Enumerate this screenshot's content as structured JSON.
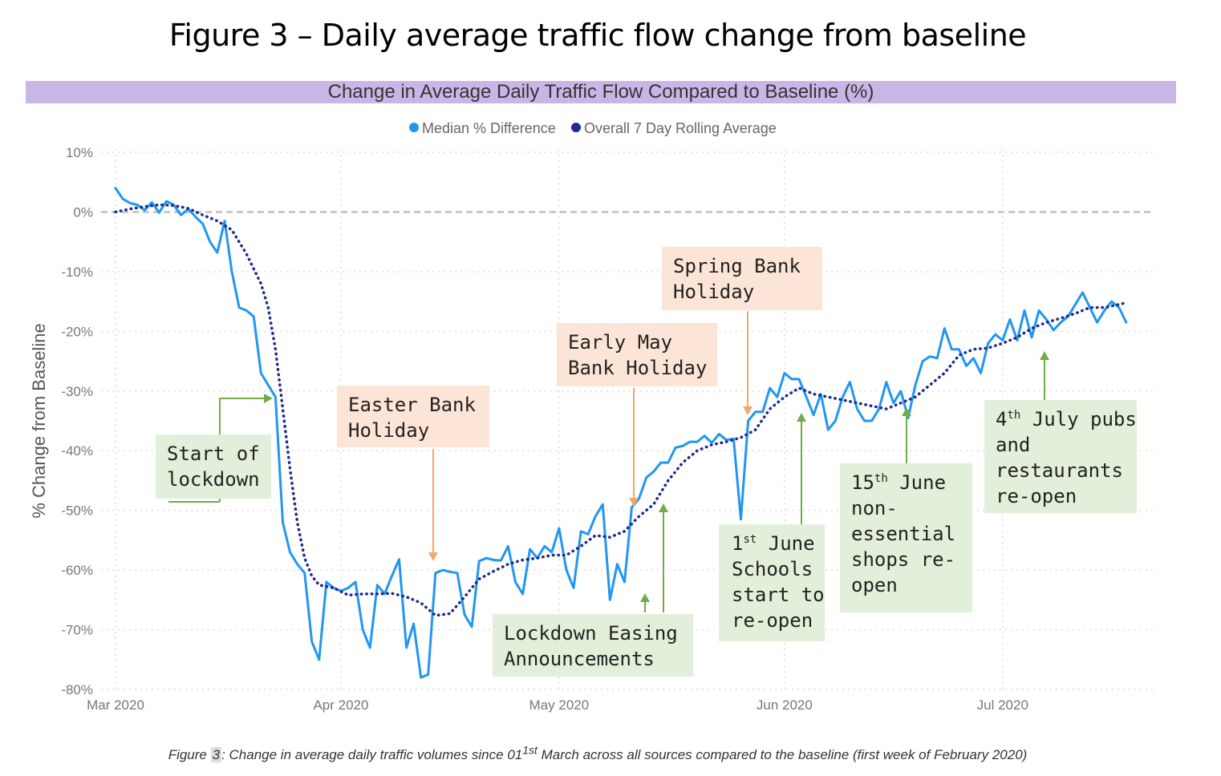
{
  "figure_title": "Figure 3 – Daily average traffic flow change from baseline",
  "chart_data": {
    "type": "line",
    "title": "Change in Average Daily Traffic Flow Compared to Baseline (%)",
    "ylabel": "% Change from Baseline",
    "xlabel": "",
    "ylim": [
      -80,
      10
    ],
    "yticks": [
      10,
      0,
      -10,
      -20,
      -30,
      -40,
      -50,
      -60,
      -70,
      -80
    ],
    "ytick_labels": [
      "10%",
      "0%",
      "-10%",
      "-20%",
      "-30%",
      "-40%",
      "-50%",
      "-60%",
      "-70%",
      "-80%"
    ],
    "xlim_days": [
      0,
      141
    ],
    "xticks": [
      {
        "day": 0,
        "label": "Mar 2020"
      },
      {
        "day": 31,
        "label": "Apr 2020"
      },
      {
        "day": 61,
        "label": "May 2020"
      },
      {
        "day": 92,
        "label": "Jun 2020"
      },
      {
        "day": 122,
        "label": "Jul 2020"
      }
    ],
    "legend": {
      "position": "top-center"
    },
    "series": [
      {
        "name": "Median % Difference",
        "color": "#2196f3",
        "style": "solid",
        "points": [
          [
            0,
            4
          ],
          [
            1,
            2.2
          ],
          [
            2,
            1.5
          ],
          [
            3,
            1.2
          ],
          [
            4,
            0.3
          ],
          [
            5,
            1.6
          ],
          [
            6,
            -0.1
          ],
          [
            7,
            1.8
          ],
          [
            8,
            1.2
          ],
          [
            9,
            -0.5
          ],
          [
            10,
            0.5
          ],
          [
            11,
            -0.8
          ],
          [
            12,
            -2
          ],
          [
            13,
            -5
          ],
          [
            14,
            -6.8
          ],
          [
            15,
            -1.5
          ],
          [
            16,
            -10
          ],
          [
            17,
            -16
          ],
          [
            18,
            -16.5
          ],
          [
            19,
            -17.5
          ],
          [
            20,
            -27
          ],
          [
            21,
            -29
          ],
          [
            22,
            -31
          ],
          [
            23,
            -52
          ],
          [
            24,
            -57
          ],
          [
            25,
            -59
          ],
          [
            26,
            -60.5
          ],
          [
            27,
            -72
          ],
          [
            28,
            -75
          ],
          [
            29,
            -62
          ],
          [
            30,
            -63
          ],
          [
            31,
            -63.5
          ],
          [
            32,
            -63
          ],
          [
            33,
            -62
          ],
          [
            34,
            -70
          ],
          [
            35,
            -73
          ],
          [
            36,
            -62.5
          ],
          [
            37,
            -64
          ],
          [
            38,
            -61
          ],
          [
            39,
            -58.2
          ],
          [
            40,
            -73
          ],
          [
            41,
            -69
          ],
          [
            42,
            -78
          ],
          [
            43,
            -77.5
          ],
          [
            44,
            -60.5
          ],
          [
            45,
            -60
          ],
          [
            46,
            -60.3
          ],
          [
            47,
            -60.5
          ],
          [
            48,
            -67.5
          ],
          [
            49,
            -69.5
          ],
          [
            50,
            -58.5
          ],
          [
            51,
            -58
          ],
          [
            52,
            -58.3
          ],
          [
            53,
            -58.4
          ],
          [
            54,
            -56
          ],
          [
            55,
            -62
          ],
          [
            56,
            -64
          ],
          [
            57,
            -56.5
          ],
          [
            58,
            -58
          ],
          [
            59,
            -56
          ],
          [
            60,
            -57
          ],
          [
            61,
            -53
          ],
          [
            62,
            -60
          ],
          [
            63,
            -63
          ],
          [
            64,
            -53.5
          ],
          [
            65,
            -54
          ],
          [
            66,
            -51
          ],
          [
            67,
            -49
          ],
          [
            68,
            -65
          ],
          [
            69,
            -59
          ],
          [
            70,
            -62
          ],
          [
            71,
            -49.5
          ],
          [
            72,
            -48
          ],
          [
            73,
            -44.5
          ],
          [
            74,
            -43.5
          ],
          [
            75,
            -42
          ],
          [
            76,
            -42
          ],
          [
            77,
            -39.5
          ],
          [
            78,
            -39.2
          ],
          [
            79,
            -38.5
          ],
          [
            80,
            -38.5
          ],
          [
            81,
            -37.5
          ],
          [
            82,
            -38.7
          ],
          [
            83,
            -37.2
          ],
          [
            84,
            -38.2
          ],
          [
            85,
            -38
          ],
          [
            86,
            -51.5
          ],
          [
            87,
            -35
          ],
          [
            88,
            -33.5
          ],
          [
            89,
            -33.5
          ],
          [
            90,
            -29.5
          ],
          [
            91,
            -31
          ],
          [
            92,
            -27
          ],
          [
            93,
            -28
          ],
          [
            94,
            -28
          ],
          [
            95,
            -31
          ],
          [
            96,
            -34
          ],
          [
            97,
            -30.5
          ],
          [
            98,
            -36.5
          ],
          [
            99,
            -35
          ],
          [
            100,
            -31
          ],
          [
            101,
            -28.5
          ],
          [
            102,
            -33
          ],
          [
            103,
            -35
          ],
          [
            104,
            -35
          ],
          [
            105,
            -33
          ],
          [
            106,
            -28.5
          ],
          [
            107,
            -32
          ],
          [
            108,
            -30
          ],
          [
            109,
            -34.5
          ],
          [
            110,
            -29
          ],
          [
            111,
            -25
          ],
          [
            112,
            -24.2
          ],
          [
            113,
            -24.5
          ],
          [
            114,
            -19.5
          ],
          [
            115,
            -23
          ],
          [
            116,
            -23
          ],
          [
            117,
            -25.8
          ],
          [
            118,
            -24.5
          ],
          [
            119,
            -27
          ],
          [
            120,
            -22
          ],
          [
            121,
            -20.5
          ],
          [
            122,
            -21.5
          ],
          [
            123,
            -18
          ],
          [
            124,
            -21.5
          ],
          [
            125,
            -16.5
          ],
          [
            126,
            -21
          ],
          [
            127,
            -16.5
          ],
          [
            128,
            -18
          ],
          [
            129,
            -19.8
          ],
          [
            130,
            -18.5
          ],
          [
            131,
            -17.5
          ],
          [
            132,
            -15.5
          ],
          [
            133,
            -13.5
          ],
          [
            134,
            -16
          ],
          [
            135,
            -18.5
          ],
          [
            136,
            -16.5
          ],
          [
            137,
            -15
          ],
          [
            138,
            -16
          ],
          [
            139,
            -18.5
          ]
        ]
      },
      {
        "name": "Overall 7 Day Rolling Average",
        "color": "#1f2b8f",
        "style": "dotted",
        "points": [
          [
            0,
            0
          ],
          [
            2,
            0.5
          ],
          [
            4,
            0.9
          ],
          [
            6,
            1.2
          ],
          [
            8,
            1.1
          ],
          [
            10,
            0.6
          ],
          [
            12,
            -0.5
          ],
          [
            14,
            -1.5
          ],
          [
            16,
            -3
          ],
          [
            18,
            -7
          ],
          [
            20,
            -12
          ],
          [
            21,
            -16
          ],
          [
            22,
            -23
          ],
          [
            23,
            -33
          ],
          [
            24,
            -43
          ],
          [
            25,
            -52
          ],
          [
            26,
            -58
          ],
          [
            27,
            -61
          ],
          [
            28,
            -62.5
          ],
          [
            30,
            -63
          ],
          [
            32,
            -64.2
          ],
          [
            34,
            -64
          ],
          [
            36,
            -64
          ],
          [
            38,
            -63.9
          ],
          [
            40,
            -64.5
          ],
          [
            42,
            -65.5
          ],
          [
            44,
            -67.6
          ],
          [
            46,
            -67.3
          ],
          [
            48,
            -64.5
          ],
          [
            50,
            -61.5
          ],
          [
            52,
            -60.2
          ],
          [
            54,
            -59
          ],
          [
            56,
            -58.3
          ],
          [
            58,
            -58
          ],
          [
            60,
            -57.5
          ],
          [
            62,
            -57.5
          ],
          [
            64,
            -56
          ],
          [
            66,
            -54.2
          ],
          [
            68,
            -54.5
          ],
          [
            70,
            -53.5
          ],
          [
            72,
            -51
          ],
          [
            74,
            -49
          ],
          [
            76,
            -45
          ],
          [
            78,
            -42
          ],
          [
            80,
            -40
          ],
          [
            82,
            -39
          ],
          [
            84,
            -38.5
          ],
          [
            86,
            -37.8
          ],
          [
            88,
            -36.5
          ],
          [
            90,
            -33
          ],
          [
            92,
            -31
          ],
          [
            94,
            -29.5
          ],
          [
            96,
            -30.5
          ],
          [
            98,
            -31
          ],
          [
            100,
            -31.5
          ],
          [
            102,
            -32
          ],
          [
            104,
            -32.5
          ],
          [
            106,
            -33
          ],
          [
            108,
            -32
          ],
          [
            110,
            -31
          ],
          [
            112,
            -29
          ],
          [
            114,
            -27
          ],
          [
            116,
            -24
          ],
          [
            118,
            -23
          ],
          [
            120,
            -22.8
          ],
          [
            122,
            -22
          ],
          [
            124,
            -21
          ],
          [
            126,
            -19.5
          ],
          [
            128,
            -18.5
          ],
          [
            130,
            -17.8
          ],
          [
            132,
            -17
          ],
          [
            134,
            -16
          ],
          [
            136,
            -16
          ],
          [
            138,
            -15.5
          ],
          [
            139,
            -15.2
          ]
        ]
      }
    ],
    "annotations": [
      {
        "day": 22,
        "value": -31,
        "text": [
          "Start of",
          "lockdown"
        ]
      },
      {
        "day": 43,
        "value": -59,
        "text": [
          "Easter Bank",
          "Holiday"
        ]
      },
      {
        "day": 72,
        "value": -49.5,
        "text": [
          "Early May",
          "Bank Holiday"
        ]
      },
      {
        "day": 68,
        "value": -66,
        "text": [
          "Lockdown Easing",
          "Announcements"
        ]
      },
      {
        "day": 75,
        "value": -49.5,
        "text": [
          "Lockdown Easing",
          "Announcements"
        ]
      },
      {
        "day": 87,
        "value": -34.5,
        "text": [
          "Spring Bank",
          "Holiday"
        ]
      },
      {
        "day": 94,
        "value": -33.5,
        "text": [
          "1st June",
          "Schools",
          "start to",
          "re-open"
        ]
      },
      {
        "day": 108,
        "value": -32.5,
        "text": [
          "15th June",
          "non-",
          "essential",
          "shops re-",
          "open"
        ]
      },
      {
        "day": 126,
        "value": -22.5,
        "text": [
          "4th July pubs",
          "and",
          "restaurants",
          "re-open"
        ]
      }
    ]
  },
  "notes": {
    "lockdown": {
      "line1": "Start of",
      "line2": "lockdown"
    },
    "easter": {
      "line1": "Easter Bank",
      "line2": "Holiday"
    },
    "early_may": {
      "line1": "Early May",
      "line2": "Bank Holiday"
    },
    "spring": {
      "line1": "Spring Bank",
      "line2": "Holiday"
    },
    "easing": {
      "line1": "Lockdown Easing",
      "line2": "Announcements"
    },
    "schools": {
      "ord": "1",
      "sup": "st",
      "rest": " June",
      "line2": "Schools",
      "line3": "start to",
      "line4": "re-open"
    },
    "shops": {
      "ord": "15",
      "sup": "th",
      "rest": " June",
      "line2": "non-",
      "line3": "essential",
      "line4": "shops re-",
      "line5": "open"
    },
    "pubs": {
      "ord": "4",
      "sup": "th",
      "rest": " July pubs",
      "line2": "and",
      "line3": "restaurants",
      "line4": "re-open"
    }
  },
  "caption": {
    "prefix": "Figure ",
    "number": "3",
    "mid": ": Change in average daily traffic volumes since 01",
    "sup": "1st",
    "suffix": " March across all sources compared to the baseline (first week of February 2020)"
  },
  "colors": {
    "median": "#2196f3",
    "rolling": "#1f2b8f",
    "header_band": "#c8b7e6",
    "green_note": "#e2efda",
    "peach_note": "#fce4d6",
    "green_arrow": "#70ad47",
    "orange_arrow": "#f4a66a"
  }
}
